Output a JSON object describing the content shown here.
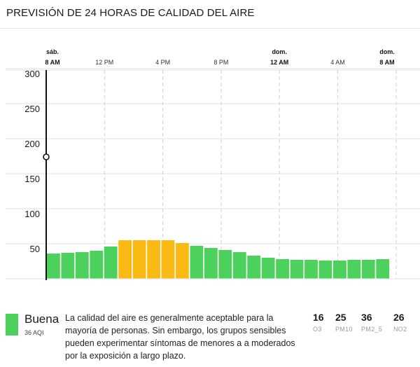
{
  "header": {
    "title": "PREVISIÓN DE 24 HORAS DE CALIDAD DEL AIRE"
  },
  "colors": {
    "good": "#4cd15c",
    "moderate": "#fbb913",
    "axis": "#111111",
    "grid": "#cfcfcf"
  },
  "chart_data": {
    "type": "bar",
    "title": "PREVISIÓN DE 24 HORAS DE CALIDAD DEL AIRE",
    "ylim": [
      0,
      310
    ],
    "yticks": [
      "300",
      "250",
      "200",
      "150",
      "100",
      "50"
    ],
    "xticks": [
      {
        "day": "sáb.",
        "time": "8 AM",
        "bold": true
      },
      {
        "day": "",
        "time": "12 PM",
        "bold": false
      },
      {
        "day": "",
        "time": "4 PM",
        "bold": false
      },
      {
        "day": "",
        "time": "8 PM",
        "bold": false
      },
      {
        "day": "dom.",
        "time": "12 AM",
        "bold": true
      },
      {
        "day": "",
        "time": "4 AM",
        "bold": false
      },
      {
        "day": "dom.",
        "time": "8 AM",
        "bold": true
      }
    ],
    "values": [
      36,
      37,
      38,
      40,
      46,
      55,
      55,
      55,
      55,
      51,
      47,
      44,
      41,
      38,
      33,
      30,
      28,
      27,
      27,
      26,
      26,
      27,
      27,
      28
    ],
    "levels": [
      "good",
      "good",
      "good",
      "good",
      "good",
      "moderate",
      "moderate",
      "moderate",
      "moderate",
      "moderate",
      "good",
      "good",
      "good",
      "good",
      "good",
      "good",
      "good",
      "good",
      "good",
      "good",
      "good",
      "good",
      "good",
      "good"
    ],
    "marker_value": 174,
    "grid": true
  },
  "legend": {
    "level": "Buena",
    "aqi": "36 AQI",
    "description": "La calidad del aire es generalmente aceptable para la mayoría de personas. Sin embargo, los grupos sensibles pueden experimentar síntomas de menores a a moderados por la exposición a largo plazo.",
    "pollutants": [
      {
        "value": "16",
        "name": "O3"
      },
      {
        "value": "25",
        "name": "PM10"
      },
      {
        "value": "36",
        "name": "PM2_5"
      },
      {
        "value": "26",
        "name": "NO2"
      }
    ]
  }
}
